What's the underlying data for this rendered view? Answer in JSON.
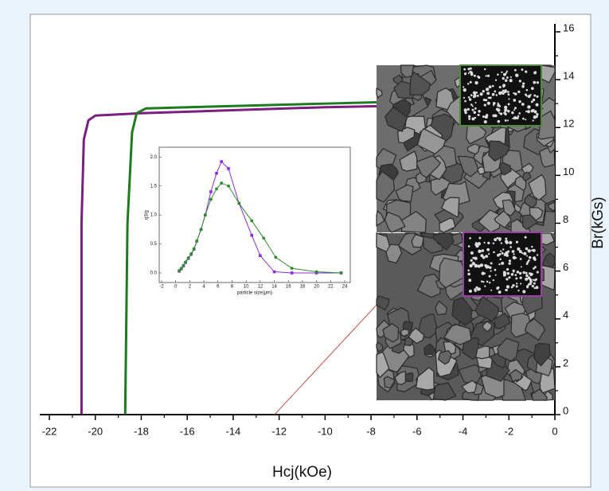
{
  "chart_data": [
    {
      "type": "line",
      "xlabel": "Hcj(kOe)",
      "ylabel": "Br(kGs)",
      "xlim": [
        -22,
        0
      ],
      "xticks": [
        -22,
        -20,
        -18,
        -16,
        -14,
        -12,
        -10,
        -8,
        -6,
        -4,
        -2,
        0
      ],
      "ylim": [
        0,
        16
      ],
      "yticks": [
        0,
        2,
        4,
        6,
        8,
        10,
        12,
        14,
        16
      ],
      "series": [
        {
          "color": "#7b1f7f",
          "x": [
            -20.6,
            -20.6,
            -20.5,
            -20.3,
            -20.0,
            -18.0,
            -10.0,
            -2.0,
            0.0
          ],
          "values": [
            0,
            8,
            11.5,
            12.3,
            12.5,
            12.6,
            12.85,
            13.0,
            13.1
          ]
        },
        {
          "color": "#1e7a1e",
          "x": [
            -18.7,
            -18.6,
            -18.4,
            -18.2,
            -17.8,
            -10.0,
            -2.0,
            0.0
          ],
          "values": [
            0,
            8,
            11.8,
            12.6,
            12.8,
            13.0,
            13.2,
            13.3
          ]
        },
        {
          "color": "#c0504d",
          "x": [
            -12.2,
            0.0
          ],
          "values": [
            0,
            12.6
          ]
        }
      ]
    },
    {
      "type": "line",
      "xlabel": "particle size(μm)",
      "ylabel": "q3/g",
      "xlim": [
        -2,
        24
      ],
      "xticks": [
        -2,
        0,
        2,
        4,
        6,
        8,
        10,
        12,
        14,
        16,
        18,
        20,
        22,
        24
      ],
      "ylim": [
        0,
        2.1
      ],
      "yticks": [
        {
          "value": 0,
          "label": "0.0"
        },
        0.5,
        {
          "value": 1,
          "label": "1.0"
        },
        1.5,
        {
          "value": 2,
          "label": "2.0"
        }
      ],
      "series": [
        {
          "color": "#8a2be2",
          "marker": "square",
          "x": [
            0.5,
            0.8,
            1.1,
            1.4,
            1.8,
            2.2,
            2.6,
            3.0,
            3.6,
            4.2,
            5.0,
            5.8,
            6.5,
            7.5,
            9.0,
            10.8,
            12.0,
            14.0,
            16.5,
            20.0,
            23.5
          ],
          "values": [
            0.03,
            0.07,
            0.12,
            0.18,
            0.25,
            0.32,
            0.41,
            0.55,
            0.75,
            1.0,
            1.4,
            1.72,
            1.92,
            1.8,
            1.2,
            0.65,
            0.3,
            0.02,
            0.0,
            0.0,
            0.0
          ]
        },
        {
          "color": "#2e8b2e",
          "marker": "circle",
          "x": [
            0.5,
            0.8,
            1.1,
            1.4,
            1.8,
            2.2,
            2.6,
            3.0,
            3.6,
            4.2,
            5.0,
            5.8,
            6.5,
            7.5,
            9.0,
            10.8,
            12.5,
            14.2,
            16.5,
            20.0,
            23.5
          ],
          "values": [
            0.04,
            0.08,
            0.13,
            0.19,
            0.26,
            0.33,
            0.42,
            0.55,
            0.75,
            1.0,
            1.27,
            1.45,
            1.55,
            1.5,
            1.2,
            0.9,
            0.6,
            0.27,
            0.08,
            0.02,
            0.0
          ]
        }
      ]
    }
  ]
}
